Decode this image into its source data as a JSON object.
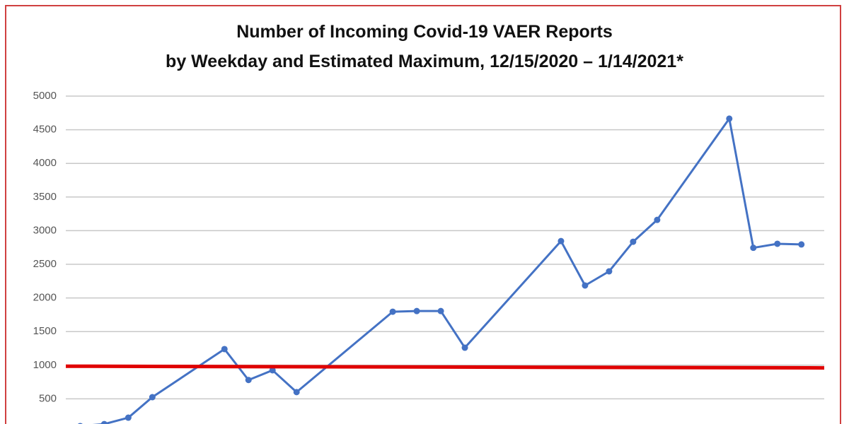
{
  "chart_data": {
    "type": "line",
    "title": [
      "Number of Incoming Covid-19 VAER Reports",
      "by Weekday and Estimated Maximum, 12/15/2020 – 1/14/2021*"
    ],
    "series": [
      {
        "color": "#4472c4",
        "markers": true,
        "width": 3,
        "x": [
          0,
          1,
          2,
          3,
          6,
          7,
          8,
          9,
          13,
          14,
          15,
          16,
          20,
          21,
          22,
          23,
          24,
          27,
          28,
          29,
          30
        ],
        "values": [
          95,
          125,
          220,
          525,
          1240,
          780,
          925,
          600,
          1795,
          1805,
          1805,
          1260,
          2845,
          2185,
          2395,
          2835,
          3160,
          4665,
          2745,
          2805,
          2795
        ]
      },
      {
        "color": "#e00000",
        "markers": false,
        "width": 5,
        "x": [
          -0.6,
          30.95
        ],
        "values": [
          985,
          960
        ]
      }
    ],
    "xlim": [
      -0.6,
      30.95
    ],
    "ylim": [
      0,
      5000
    ],
    "yticks": [
      500,
      1000,
      1500,
      2000,
      2500,
      3000,
      3500,
      4000,
      4500,
      5000
    ],
    "grid": true
  }
}
